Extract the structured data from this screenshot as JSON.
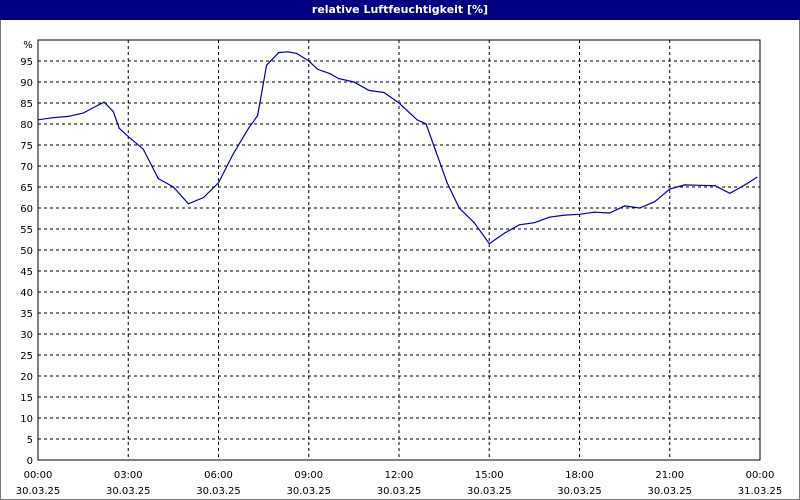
{
  "chart_data": {
    "type": "line",
    "title": "relative Luftfeuchtigkeit [%]",
    "y_unit_label": "%",
    "ylim": [
      0,
      100
    ],
    "y_ticks": [
      "0",
      "5",
      "10",
      "15",
      "20",
      "25",
      "30",
      "35",
      "40",
      "45",
      "50",
      "55",
      "60",
      "65",
      "70",
      "75",
      "80",
      "85",
      "90",
      "95"
    ],
    "x_ticks": [
      {
        "time": "00:00",
        "date": "30.03.25"
      },
      {
        "time": "03:00",
        "date": "30.03.25"
      },
      {
        "time": "06:00",
        "date": "30.03.25"
      },
      {
        "time": "09:00",
        "date": "30.03.25"
      },
      {
        "time": "12:00",
        "date": "30.03.25"
      },
      {
        "time": "15:00",
        "date": "30.03.25"
      },
      {
        "time": "18:00",
        "date": "30.03.25"
      },
      {
        "time": "21:00",
        "date": "30.03.25"
      },
      {
        "time": "00:00",
        "date": "31.03.25"
      }
    ],
    "grid": true,
    "line_color": "#0000a0",
    "series": [
      {
        "x_hours": [
          0,
          0.5,
          1,
          1.5,
          2,
          2.2,
          2.5,
          2.7,
          3,
          3.5,
          4,
          4.5,
          5,
          5.5,
          6,
          6.5,
          7,
          7.3,
          7.6,
          8,
          8.3,
          8.6,
          9,
          9.3,
          9.7,
          10,
          10.5,
          11,
          11.5,
          12,
          12.3,
          12.6,
          12.9,
          13.3,
          13.6,
          14,
          14.5,
          15,
          15.5,
          16,
          16.5,
          17,
          17.5,
          18,
          18.5,
          19,
          19.5,
          20,
          20.5,
          21,
          21.5,
          22,
          22.5,
          23,
          23.5,
          23.9
        ],
        "values": [
          81,
          81.5,
          81.8,
          82.6,
          84.5,
          85.2,
          83,
          79,
          77,
          74,
          67,
          65,
          61,
          62.5,
          66,
          73,
          79,
          82,
          94,
          97,
          97.2,
          96.8,
          95,
          93,
          92,
          90.8,
          90,
          88,
          87.5,
          85,
          83,
          81,
          80,
          72,
          66,
          60,
          56.5,
          51.5,
          54,
          56,
          56.5,
          57.8,
          58.3,
          58.5,
          59,
          58.8,
          60.5,
          60,
          61.5,
          64.5,
          65.5,
          65.4,
          65.3,
          63.5,
          65.5,
          67.3
        ]
      }
    ]
  }
}
